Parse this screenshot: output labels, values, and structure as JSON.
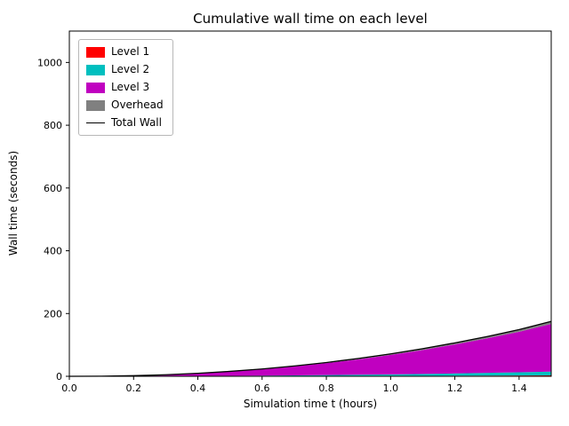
{
  "figure": {
    "title": "Cumulative wall time on each level",
    "xlabel": "Simulation time t (hours)",
    "ylabel": "Wall time (seconds)"
  },
  "chart_data": {
    "type": "area",
    "stacked": true,
    "title": "Cumulative wall time on each level",
    "xlabel": "Simulation time t (hours)",
    "ylabel": "Wall time (seconds)",
    "xlim": [
      0,
      1.5
    ],
    "ylim": [
      0,
      1100
    ],
    "xticks": [
      0.0,
      0.2,
      0.4,
      0.6,
      0.8,
      1.0,
      1.2,
      1.4
    ],
    "yticks": [
      0,
      200,
      400,
      600,
      800,
      1000
    ],
    "grid": false,
    "legend_position": "upper left",
    "x": [
      0.0,
      0.1,
      0.2,
      0.3,
      0.4,
      0.5,
      0.6,
      0.7,
      0.8,
      0.9,
      1.0,
      1.1,
      1.2,
      1.3,
      1.4,
      1.5
    ],
    "series": [
      {
        "name": "Level 1",
        "kind": "area",
        "color": "#ff0000",
        "values": [
          0,
          0,
          0.1,
          0.1,
          0.2,
          0.3,
          0.4,
          0.6,
          0.8,
          1.0,
          1.2,
          1.5,
          1.8,
          2.2,
          2.6,
          3.0
        ]
      },
      {
        "name": "Level 2",
        "kind": "area",
        "color": "#00bfbf",
        "values": [
          0,
          0,
          0.1,
          0.3,
          0.7,
          1.1,
          1.6,
          2.2,
          3.0,
          3.9,
          4.9,
          6.0,
          7.3,
          8.7,
          10.2,
          12.0
        ]
      },
      {
        "name": "Level 3",
        "kind": "area",
        "color": "#c000c0",
        "values": [
          0,
          0.4,
          1.8,
          4.4,
          8.3,
          13.6,
          20.3,
          28.5,
          38.1,
          49.3,
          62.1,
          76.4,
          92.4,
          109.9,
          129.1,
          152.0
        ]
      },
      {
        "name": "Overhead",
        "kind": "area",
        "color": "#808080",
        "values": [
          0,
          0,
          0.1,
          0.2,
          0.4,
          0.7,
          1.1,
          1.5,
          2.0,
          2.6,
          3.3,
          4.0,
          4.9,
          5.8,
          6.8,
          8.0
        ]
      },
      {
        "name": "Total Wall",
        "kind": "line",
        "color": "#000000",
        "values": [
          0,
          0.4,
          2.1,
          5.0,
          9.6,
          15.7,
          23.4,
          32.8,
          43.9,
          56.8,
          71.5,
          87.9,
          106.4,
          126.6,
          148.7,
          175.0
        ]
      }
    ]
  }
}
